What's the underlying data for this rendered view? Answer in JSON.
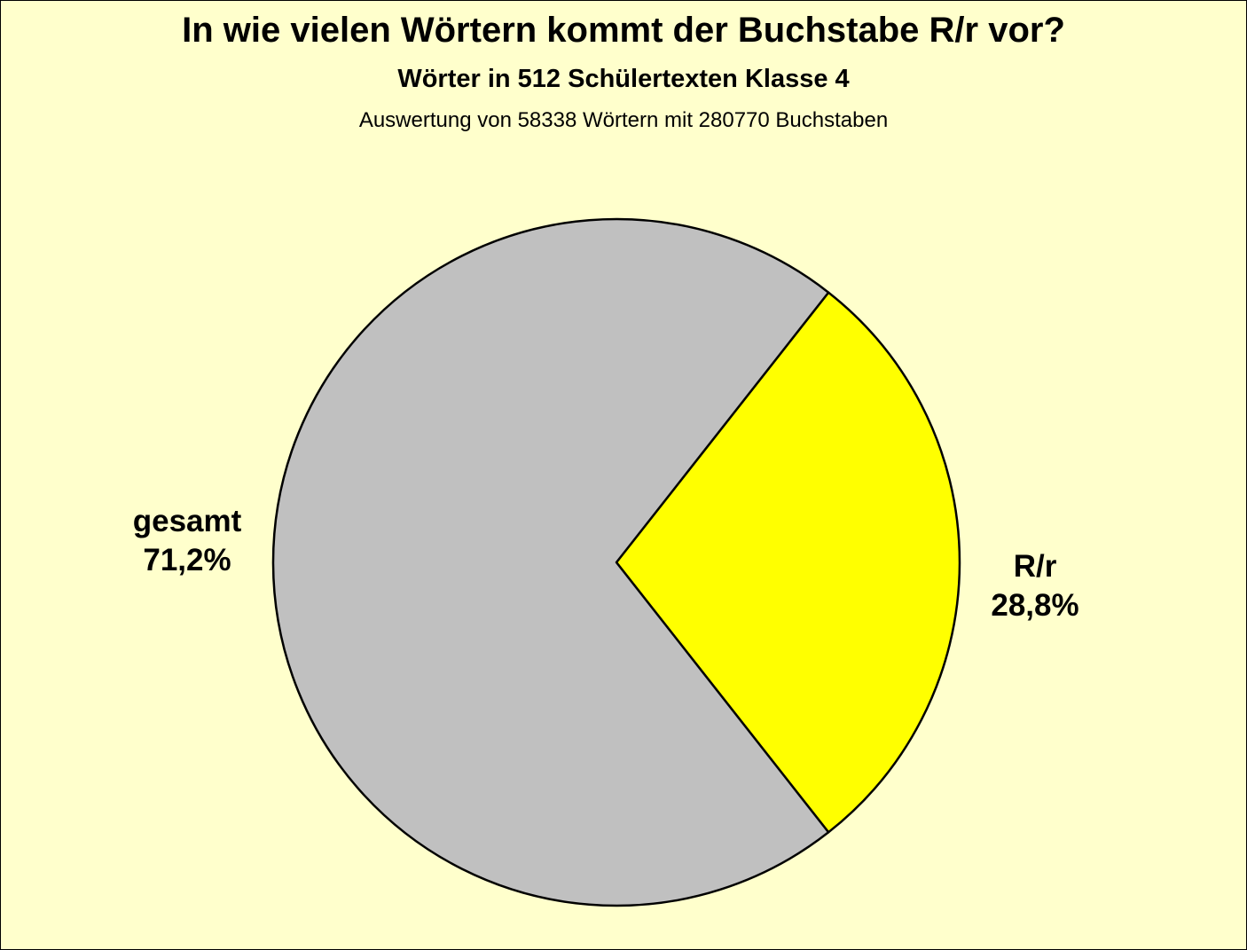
{
  "chart_data": {
    "type": "pie",
    "title": "In wie vielen Wörtern kommt der Buchstabe R/r vor?",
    "subtitle": "Wörter in 512 Schülertexten Klasse 4",
    "subtitle2": "Auswertung von 58338 Wörtern mit 280770 Buchstaben",
    "slices": [
      {
        "name": "R/r",
        "value": 28.8,
        "value_label": "28,8%",
        "color": "#ffff00"
      },
      {
        "name": "gesamt",
        "value": 71.2,
        "value_label": "71,2%",
        "color": "#c0c0c0"
      }
    ]
  },
  "colors": {
    "background": "#ffffcc",
    "outline": "#000000"
  }
}
